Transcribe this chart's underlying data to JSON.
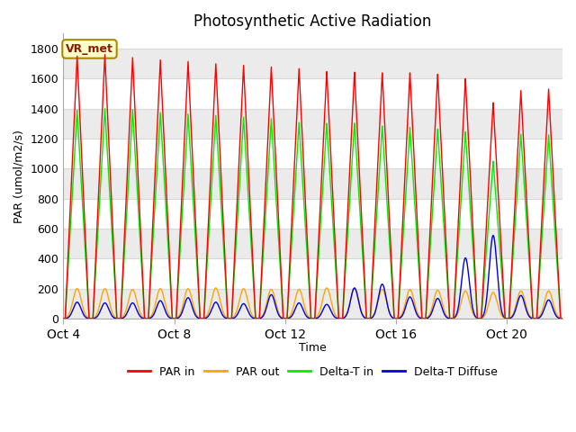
{
  "title": "Photosynthetic Active Radiation",
  "ylabel": "PAR (umol/m2/s)",
  "xlabel": "Time",
  "annotation": "VR_met",
  "ylim": [
    0,
    1900
  ],
  "yticks": [
    0,
    200,
    400,
    600,
    800,
    1000,
    1200,
    1400,
    1600,
    1800
  ],
  "xtick_labels": [
    "Oct 4",
    "Oct 8",
    "Oct 12",
    "Oct 16",
    "Oct 20"
  ],
  "xtick_positions": [
    0,
    4,
    8,
    12,
    16
  ],
  "xlim": [
    0,
    18
  ],
  "fig_bg_color": "#ffffff",
  "plot_bg_color": "#ffffff",
  "grid_color": "#d8d8d8",
  "colors": {
    "PAR in": "#ff0000",
    "PAR out": "#ffa500",
    "Delta-T in": "#00ee00",
    "Delta-T Diffuse": "#0000dd"
  },
  "n_days": 18,
  "peak_par_in": [
    1750,
    1760,
    1740,
    1725,
    1715,
    1700,
    1690,
    1680,
    1670,
    1650,
    1645,
    1640,
    1640,
    1630,
    1600,
    1440,
    1520,
    1530
  ],
  "peak_par_out": [
    200,
    200,
    195,
    200,
    200,
    205,
    200,
    195,
    195,
    205,
    200,
    195,
    195,
    190,
    185,
    175,
    185,
    185
  ],
  "peak_delta_t_in": [
    1390,
    1400,
    1395,
    1375,
    1365,
    1355,
    1345,
    1335,
    1310,
    1305,
    1305,
    1285,
    1275,
    1265,
    1245,
    1050,
    1230,
    1225
  ],
  "peak_delta_t_diffuse": [
    110,
    105,
    105,
    120,
    140,
    110,
    100,
    160,
    105,
    95,
    205,
    230,
    145,
    135,
    405,
    555,
    155,
    125
  ]
}
